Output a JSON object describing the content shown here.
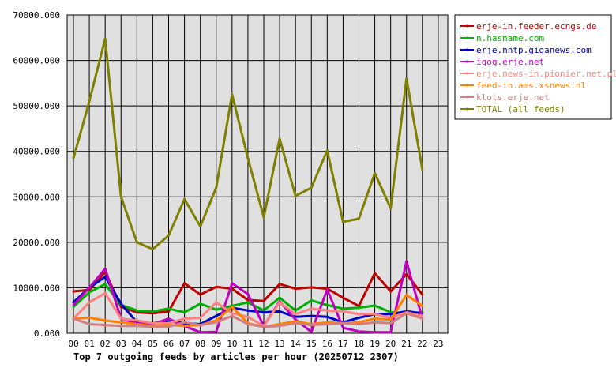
{
  "chart_data": {
    "type": "line",
    "title": "Top 7 outgoing feeds by articles per hour (20250712 2307)",
    "x_ticks": [
      "00",
      "01",
      "02",
      "03",
      "04",
      "05",
      "06",
      "07",
      "08",
      "09",
      "10",
      "11",
      "12",
      "13",
      "14",
      "15",
      "16",
      "17",
      "18",
      "19",
      "20",
      "21",
      "22",
      "23"
    ],
    "y_ticks": [
      "0.000",
      "10000.000",
      "20000.000",
      "30000.000",
      "40000.000",
      "50000.000",
      "60000.000",
      "70000.000"
    ],
    "ylim": [
      0,
      70000
    ],
    "grid": true,
    "legend_position": "right",
    "plot_background": "#e0e0e0",
    "series": [
      {
        "name": "erje-in.feeder.ecngs.de",
        "color": "#c00000",
        "x": [
          0,
          1,
          2,
          3,
          4,
          5,
          6,
          7,
          8,
          9,
          10,
          11,
          12,
          13,
          14,
          15,
          16,
          17,
          18,
          19,
          20,
          21,
          22
        ],
        "values": [
          9200,
          9500,
          13500,
          5800,
          4600,
          4400,
          4800,
          11000,
          8500,
          10200,
          9800,
          7300,
          7100,
          10800,
          9800,
          10100,
          9800,
          7800,
          6000,
          13200,
          9200,
          13000,
          8500
        ]
      },
      {
        "name": "n.hasname.com",
        "color": "#00b000",
        "x": [
          0,
          1,
          2,
          3,
          4,
          5,
          6,
          7,
          8,
          9,
          10,
          11,
          12,
          13,
          14,
          15,
          16,
          17,
          18,
          19,
          20,
          21,
          22
        ],
        "values": [
          5800,
          9000,
          10800,
          6200,
          5000,
          4800,
          5400,
          4600,
          6500,
          5200,
          6000,
          6800,
          5000,
          7800,
          5000,
          7200,
          6200,
          5400,
          5600,
          6100,
          4600,
          4400,
          4600
        ]
      },
      {
        "name": "erje.nntp.giganews.com",
        "color": "#0000c0",
        "x": [
          0,
          1,
          2,
          3,
          4,
          5,
          6,
          7,
          8,
          9,
          10,
          11,
          12,
          13,
          14,
          15,
          16,
          17,
          18,
          19,
          20,
          21,
          22
        ],
        "values": [
          6800,
          10000,
          12400,
          6500,
          2400,
          2200,
          2600,
          2200,
          2000,
          3800,
          5600,
          5000,
          4600,
          4800,
          3600,
          3800,
          3600,
          2400,
          3400,
          4200,
          4200,
          4800,
          4400
        ]
      },
      {
        "name": "iqoq.erje.net",
        "color": "#c000c0",
        "x": [
          0,
          1,
          2,
          3,
          4,
          5,
          6,
          7,
          8,
          9,
          10,
          11,
          12,
          13,
          14,
          15,
          16,
          17,
          18,
          19,
          20,
          21,
          22
        ],
        "values": [
          6200,
          10000,
          14200,
          3200,
          2200,
          2000,
          3200,
          1600,
          200,
          300,
          11000,
          8600,
          1600,
          7000,
          3000,
          300,
          9600,
          1200,
          400,
          200,
          200,
          15800,
          3200
        ]
      },
      {
        "name": "erje.news-in.pionier.net.pl",
        "color": "#ff8080",
        "x": [
          0,
          1,
          2,
          3,
          4,
          5,
          6,
          7,
          8,
          9,
          10,
          11,
          12,
          13,
          14,
          15,
          16,
          17,
          18,
          19,
          20,
          21,
          22
        ],
        "values": [
          3200,
          6800,
          8800,
          3200,
          2800,
          2200,
          2200,
          3200,
          3400,
          6800,
          4400,
          3600,
          1600,
          6800,
          4200,
          5400,
          5000,
          4800,
          4200,
          4200,
          3400,
          4600,
          3800
        ]
      },
      {
        "name": "feed-in.ams.xsnews.nl",
        "color": "#ff8000",
        "x": [
          0,
          1,
          2,
          3,
          4,
          5,
          6,
          7,
          8,
          9,
          10,
          11,
          12,
          13,
          14,
          15,
          16,
          17,
          18,
          19,
          20,
          21,
          22
        ],
        "values": [
          3200,
          3400,
          2800,
          2400,
          2000,
          1600,
          1800,
          1600,
          1800,
          2800,
          5800,
          2200,
          1400,
          2000,
          2600,
          2000,
          2400,
          2200,
          2400,
          3200,
          3000,
          8400,
          6000
        ]
      },
      {
        "name": "klots.erje.net",
        "color": "#d08080",
        "x": [
          0,
          1,
          2,
          3,
          4,
          5,
          6,
          7,
          8,
          9,
          10,
          11,
          12,
          13,
          14,
          15,
          16,
          17,
          18,
          19,
          20,
          21,
          22
        ],
        "values": [
          3200,
          2000,
          1800,
          1600,
          1600,
          1400,
          1400,
          2400,
          1800,
          2400,
          3800,
          2000,
          1400,
          1600,
          2200,
          1800,
          2000,
          2200,
          2000,
          2400,
          2200,
          4400,
          3200
        ]
      },
      {
        "name": "TOTAL (all feeds)",
        "color": "#808000",
        "x": [
          0,
          1,
          2,
          3,
          4,
          5,
          6,
          7,
          8,
          9,
          10,
          11,
          12,
          13,
          14,
          15,
          16,
          17,
          18,
          19,
          20,
          21,
          22
        ],
        "values": [
          38500,
          51000,
          64800,
          30000,
          20000,
          18500,
          21500,
          29500,
          23500,
          32000,
          52500,
          38500,
          25500,
          42800,
          30200,
          32000,
          40200,
          24500,
          25200,
          35200,
          27500,
          56000,
          36000
        ]
      }
    ]
  }
}
